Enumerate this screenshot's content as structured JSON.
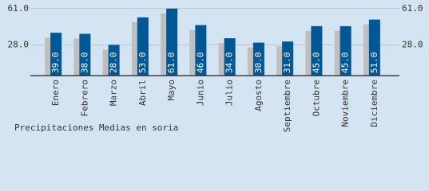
{
  "chart_data": {
    "type": "bar",
    "title": "Precipitaciones Medias en soria",
    "categories": [
      "Enero",
      "Febrero",
      "Marzo",
      "Abril",
      "Mayo",
      "Junio",
      "Julio",
      "Agosto",
      "Septiembre",
      "Octubre",
      "Noviembre",
      "Diciembre"
    ],
    "values": [
      39,
      38,
      28,
      53,
      61,
      46,
      34,
      30,
      31,
      45,
      45,
      51
    ],
    "value_labels": [
      "39.0",
      "38.0",
      "28.0",
      "53.0",
      "61.0",
      "46.0",
      "34.0",
      "30.0",
      "31.0",
      "45.0",
      "45.0",
      "51.0"
    ],
    "color": "#005796",
    "ylim": [
      0,
      63
    ],
    "yticks": [
      {
        "value": 28,
        "label": "28.0"
      },
      {
        "value": 61,
        "label": "61.0"
      }
    ],
    "grid": true
  }
}
